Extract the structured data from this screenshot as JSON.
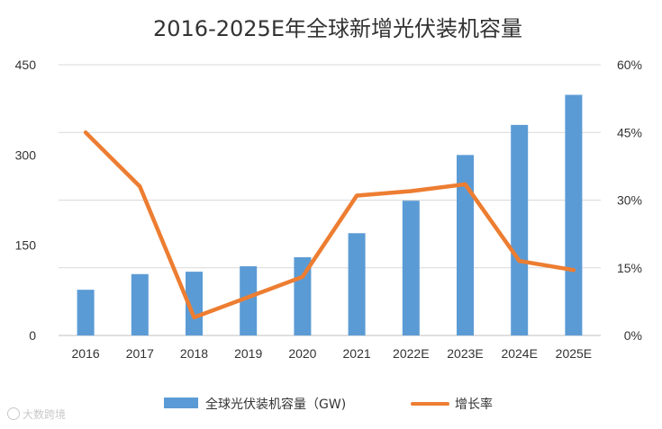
{
  "chart_data": {
    "type": "bar",
    "title": "2016-2025E年全球新增光伏装机容量",
    "categories": [
      "2016",
      "2017",
      "2018",
      "2019",
      "2020",
      "2021",
      "2022E",
      "2023E",
      "2024E",
      "2025E"
    ],
    "series": [
      {
        "name": "全球光伏装机容量（GW)",
        "type": "bar",
        "axis": "left",
        "color": "#5b9bd5",
        "values": [
          76,
          102,
          106,
          115,
          130,
          170,
          224,
          300,
          350,
          400
        ]
      },
      {
        "name": "增长率",
        "type": "line",
        "axis": "right",
        "color": "#ed7d31",
        "values": [
          0.45,
          0.33,
          0.04,
          0.085,
          0.13,
          0.31,
          0.32,
          0.335,
          0.165,
          0.145
        ]
      }
    ],
    "y_left": {
      "min": 0,
      "max": 450,
      "ticks": [
        0,
        150,
        300,
        450
      ],
      "tick_labels": [
        "0",
        "150",
        "300",
        "450"
      ]
    },
    "y_right": {
      "min": 0,
      "max": 0.6,
      "ticks": [
        0,
        0.15,
        0.3,
        0.45,
        0.6
      ],
      "tick_labels": [
        "0%",
        "15%",
        "30%",
        "45%",
        "60%"
      ]
    },
    "grid": true,
    "legend_position": "bottom"
  },
  "watermark": {
    "text": "大数跨境",
    "icon": "brand-logo-icon"
  }
}
